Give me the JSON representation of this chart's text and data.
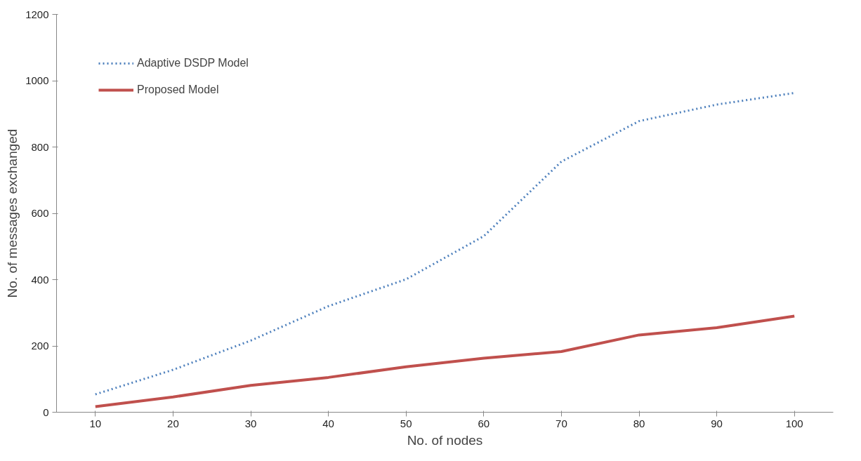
{
  "chart_data": {
    "type": "line",
    "xlabel": "No. of nodes",
    "ylabel": "No. of messages exchanged",
    "categories": [
      "10",
      "20",
      "30",
      "40",
      "50",
      "60",
      "70",
      "80",
      "90",
      "100"
    ],
    "series": [
      {
        "name": "Adaptive DSDP Model",
        "color": "#4f81bd",
        "line_style": "dotted",
        "values": [
          54,
          128,
          216,
          320,
          401,
          531,
          756,
          878,
          928,
          963
        ]
      },
      {
        "name": "Proposed Model",
        "color": "#c0504d",
        "line_style": "solid",
        "values": [
          17,
          46,
          81,
          105,
          137,
          163,
          183,
          233,
          255,
          290
        ]
      }
    ],
    "ylim": [
      0,
      1200
    ],
    "yticks": [
      0,
      200,
      400,
      600,
      800,
      1000,
      1200
    ],
    "grid": false,
    "legend": "top left",
    "marker": "none"
  }
}
